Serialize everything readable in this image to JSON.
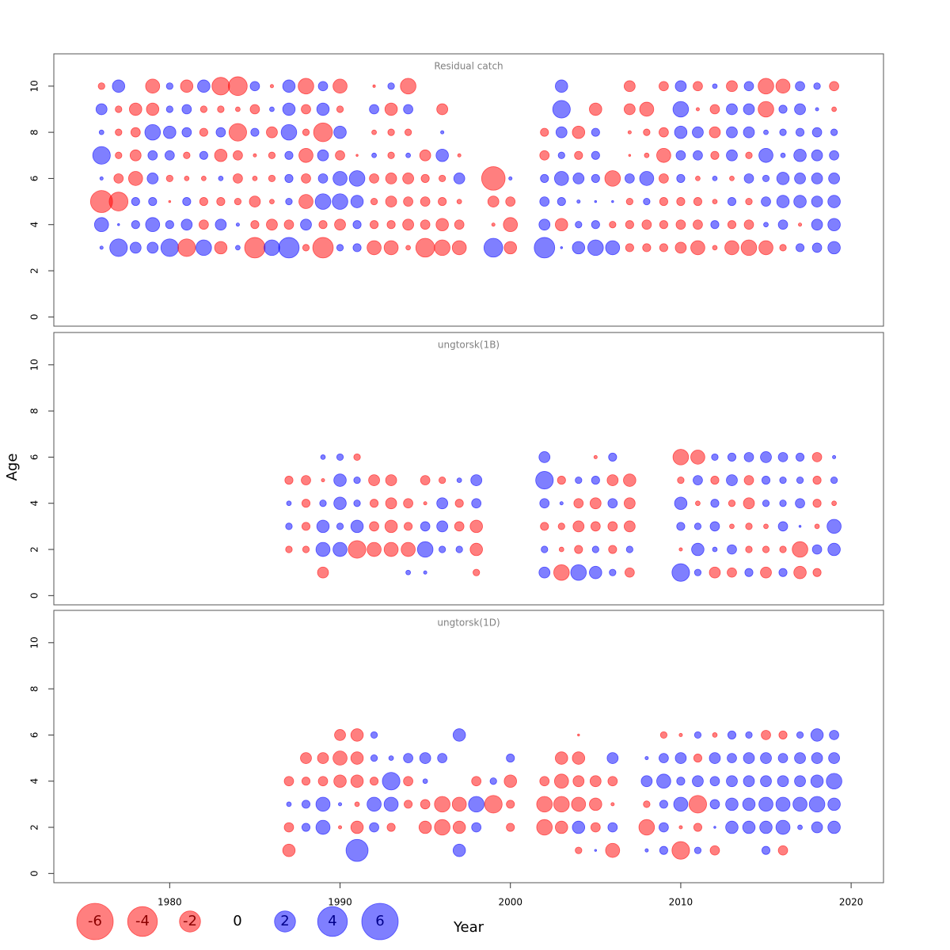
{
  "chart_data": [
    {
      "type": "bubble",
      "title": "Residual catch",
      "x": [
        1976,
        1977,
        1978,
        1979,
        1980,
        1981,
        1982,
        1983,
        1984,
        1985,
        1986,
        1987,
        1988,
        1989,
        1990,
        1991,
        1992,
        1993,
        1994,
        1995,
        1996,
        1997,
        1998,
        1999,
        2000,
        2001,
        2002,
        2003,
        2004,
        2005,
        2006,
        2007,
        2008,
        2009,
        2010,
        2011,
        2012,
        2013,
        2014,
        2015,
        2016,
        2017,
        2018,
        2019
      ],
      "ages": [
        10,
        9,
        8,
        7,
        6,
        5,
        4,
        3
      ],
      "values": [
        [
          -0.2,
          0.7,
          null,
          -0.9,
          0.2,
          -0.7,
          0.7,
          -1.4,
          -1.6,
          0.4,
          -0.05,
          0.7,
          -1.1,
          0.4,
          -0.9,
          null,
          -0.03,
          0.2,
          -1.1,
          null,
          null,
          null,
          null,
          null,
          null,
          null,
          null,
          0.7,
          null,
          null,
          null,
          -0.55,
          null,
          -0.4,
          0.55,
          -0.4,
          0.1,
          -0.55,
          0.4,
          -1.1,
          -0.9,
          0.4,
          0.2,
          -0.4
        ],
        [
          0.55,
          -0.2,
          -0.7,
          -0.7,
          0.2,
          0.4,
          -0.2,
          -0.2,
          -0.1,
          -0.4,
          0.1,
          0.7,
          -0.4,
          0.7,
          -0.2,
          null,
          0.4,
          -0.7,
          0.4,
          null,
          -0.55,
          null,
          null,
          null,
          null,
          null,
          null,
          1.4,
          null,
          -0.7,
          null,
          -0.55,
          -0.9,
          null,
          1.1,
          -0.05,
          -0.4,
          0.55,
          0.55,
          -1.1,
          0.3,
          0.55,
          0.05,
          -0.1
        ],
        [
          0.1,
          -0.2,
          -0.4,
          1.1,
          0.7,
          0.4,
          -0.3,
          0.4,
          -1.4,
          0.3,
          -0.55,
          1.1,
          -0.2,
          -1.6,
          0.7,
          null,
          -0.1,
          -0.2,
          -0.2,
          null,
          0.05,
          null,
          null,
          null,
          null,
          null,
          -0.3,
          0.55,
          -0.7,
          0.3,
          null,
          -0.05,
          -0.2,
          -0.4,
          0.7,
          0.55,
          -0.55,
          0.55,
          0.55,
          0.1,
          0.2,
          0.3,
          0.4,
          0.2
        ],
        [
          1.4,
          -0.2,
          -0.55,
          0.4,
          0.4,
          -0.2,
          0.3,
          -0.7,
          -0.4,
          -0.05,
          -0.2,
          0.3,
          -0.9,
          0.55,
          -0.4,
          -0.02,
          0.1,
          -0.2,
          0.1,
          -0.55,
          0.7,
          -0.05,
          null,
          null,
          null,
          null,
          -0.4,
          0.2,
          -0.3,
          0.3,
          null,
          -0.02,
          -0.1,
          -0.9,
          0.4,
          0.4,
          -0.3,
          0.55,
          -0.2,
          0.9,
          0.1,
          0.7,
          0.55,
          0.4
        ],
        [
          0.05,
          -0.4,
          -0.9,
          0.55,
          -0.2,
          -0.1,
          -0.1,
          0.1,
          -0.4,
          -0.1,
          -0.2,
          0.3,
          -0.4,
          0.4,
          0.9,
          1.1,
          -0.4,
          -0.55,
          -0.55,
          -0.3,
          -0.2,
          0.55,
          null,
          -2.5,
          0.05,
          null,
          0.3,
          0.9,
          0.55,
          0.3,
          -1.1,
          0.4,
          0.9,
          -0.4,
          0.3,
          -0.1,
          0.1,
          -0.1,
          0.4,
          0.2,
          0.7,
          0.55,
          0.55,
          0.55
        ],
        [
          -2.2,
          -1.6,
          0.3,
          0.3,
          -0.02,
          0.3,
          -0.3,
          -0.3,
          -0.2,
          -0.55,
          -0.1,
          0.2,
          -0.9,
          1.1,
          1.1,
          0.7,
          -0.2,
          -0.55,
          -0.4,
          -0.4,
          -0.3,
          -0.1,
          null,
          -0.55,
          -0.4,
          null,
          0.4,
          0.3,
          0.05,
          0.02,
          0.02,
          -0.2,
          0.2,
          -0.3,
          -0.3,
          -0.3,
          -0.1,
          0.3,
          -0.2,
          0.4,
          0.7,
          0.7,
          0.55,
          0.7
        ],
        [
          0.9,
          0.02,
          0.3,
          0.9,
          0.3,
          0.55,
          -0.4,
          0.55,
          0.05,
          -0.3,
          -0.55,
          -0.4,
          0.55,
          -0.3,
          -0.55,
          0.3,
          -0.3,
          -0.3,
          -0.55,
          -0.4,
          -0.7,
          -0.4,
          null,
          -0.05,
          -0.9,
          null,
          0.55,
          -0.7,
          0.2,
          0.3,
          -0.2,
          -0.3,
          -0.4,
          -0.3,
          -0.4,
          -0.4,
          0.3,
          -0.3,
          -0.4,
          0.1,
          0.4,
          -0.05,
          0.55,
          0.7
        ],
        [
          0.05,
          1.4,
          0.55,
          0.55,
          1.4,
          -1.4,
          1.1,
          -0.7,
          0.1,
          -1.9,
          1.1,
          1.9,
          -0.2,
          -1.9,
          0.2,
          0.3,
          -0.9,
          -0.9,
          -0.1,
          -1.6,
          -1.1,
          -0.9,
          null,
          1.6,
          -0.7,
          null,
          1.9,
          0.02,
          0.7,
          1.1,
          0.9,
          -0.3,
          -0.3,
          -0.3,
          -0.55,
          -0.9,
          -0.1,
          -0.9,
          -1.1,
          -0.9,
          -0.2,
          0.3,
          0.4,
          0.7
        ]
      ],
      "xlim": [
        1973.2,
        2021.9
      ],
      "ylim": [
        -0.4,
        11.4
      ],
      "yticks": [
        0,
        2,
        4,
        6,
        8,
        10
      ]
    },
    {
      "type": "bubble",
      "title": "ungtorsk(1B)",
      "x": [
        1987,
        1988,
        1989,
        1990,
        1991,
        1992,
        1993,
        1994,
        1995,
        1996,
        1997,
        1998,
        1999,
        2000,
        2001,
        2002,
        2003,
        2004,
        2005,
        2006,
        2007,
        2008,
        2009,
        2010,
        2011,
        2012,
        2013,
        2014,
        2015,
        2016,
        2017,
        2018,
        2019
      ],
      "ages": [
        6,
        5,
        4,
        3,
        2,
        1
      ],
      "values": [
        [
          null,
          null,
          0.1,
          0.2,
          -0.2,
          null,
          null,
          null,
          null,
          null,
          null,
          null,
          null,
          null,
          null,
          0.55,
          null,
          null,
          -0.05,
          0.3,
          null,
          null,
          null,
          -1.1,
          -0.9,
          0.2,
          0.3,
          0.4,
          0.55,
          0.4,
          0.3,
          -0.4,
          0.05
        ],
        [
          -0.3,
          -0.4,
          -0.05,
          0.7,
          0.2,
          -0.55,
          -0.55,
          null,
          -0.4,
          -0.2,
          0.1,
          0.55,
          null,
          null,
          null,
          1.4,
          -0.3,
          0.2,
          0.3,
          -0.55,
          -0.7,
          null,
          null,
          -0.2,
          0.4,
          -0.3,
          0.55,
          -0.4,
          0.3,
          0.2,
          0.2,
          -0.3,
          0.2
        ],
        [
          0.1,
          -0.3,
          0.2,
          0.7,
          0.2,
          -0.3,
          -0.55,
          -0.4,
          -0.05,
          0.55,
          -0.3,
          0.4,
          null,
          null,
          null,
          0.4,
          0.05,
          -0.4,
          -0.55,
          0.4,
          -0.55,
          null,
          null,
          0.7,
          -0.1,
          0.3,
          -0.2,
          -0.55,
          0.2,
          0.2,
          0.4,
          -0.3,
          -0.1
        ],
        [
          0.2,
          -0.3,
          0.7,
          0.2,
          0.7,
          -0.4,
          -0.7,
          -0.3,
          0.4,
          0.55,
          -0.4,
          -0.7,
          null,
          null,
          null,
          -0.3,
          -0.2,
          -0.55,
          -0.4,
          -0.4,
          -0.55,
          null,
          null,
          0.3,
          0.2,
          0.4,
          -0.1,
          -0.2,
          -0.1,
          0.4,
          0.02,
          -0.1,
          0.9
        ],
        [
          -0.2,
          -0.2,
          0.9,
          0.9,
          -1.4,
          -0.9,
          -0.9,
          -0.9,
          1.1,
          0.2,
          0.2,
          -0.7,
          null,
          null,
          null,
          0.2,
          -0.1,
          -0.3,
          0.2,
          -0.3,
          0.2,
          null,
          null,
          -0.05,
          0.7,
          0.1,
          0.4,
          -0.2,
          -0.2,
          -0.2,
          -1.1,
          0.4,
          0.7
        ],
        [
          null,
          null,
          -0.55,
          null,
          null,
          null,
          null,
          0.1,
          0.05,
          null,
          null,
          -0.2,
          null,
          null,
          null,
          0.55,
          -1.1,
          1.1,
          0.7,
          0.2,
          -0.4,
          null,
          null,
          1.4,
          0.2,
          -0.55,
          -0.4,
          0.3,
          -0.55,
          0.3,
          -0.7,
          -0.3,
          null
        ]
      ],
      "xlim": [
        1973.2,
        2021.9
      ],
      "ylim": [
        -0.4,
        11.4
      ],
      "yticks": [
        0,
        2,
        4,
        6,
        8,
        10
      ]
    },
    {
      "type": "bubble",
      "title": "ungtorsk(1D)",
      "x": [
        1987,
        1988,
        1989,
        1990,
        1991,
        1992,
        1993,
        1994,
        1995,
        1996,
        1997,
        1998,
        1999,
        2000,
        2001,
        2002,
        2003,
        2004,
        2005,
        2006,
        2007,
        2008,
        2009,
        2010,
        2011,
        2012,
        2013,
        2014,
        2015,
        2016,
        2017,
        2018,
        2019
      ],
      "ages": [
        6,
        5,
        4,
        3,
        2,
        1
      ],
      "values": [
        [
          null,
          null,
          null,
          -0.55,
          -0.7,
          0.2,
          null,
          null,
          null,
          null,
          0.7,
          null,
          null,
          null,
          null,
          null,
          null,
          -0.02,
          null,
          null,
          null,
          null,
          -0.2,
          -0.05,
          0.2,
          -0.1,
          0.3,
          0.2,
          -0.4,
          -0.3,
          0.2,
          0.7,
          0.4
        ],
        [
          null,
          -0.55,
          -0.55,
          -0.9,
          -0.7,
          0.2,
          0.1,
          0.4,
          0.55,
          0.4,
          null,
          null,
          null,
          0.3,
          null,
          null,
          -0.7,
          -0.7,
          null,
          0.55,
          null,
          0.05,
          0.4,
          0.55,
          -0.3,
          0.55,
          0.4,
          0.55,
          0.55,
          0.4,
          0.55,
          0.55,
          0.55
        ],
        [
          -0.4,
          -0.3,
          -0.4,
          -0.7,
          -0.7,
          -0.3,
          1.4,
          -0.4,
          0.1,
          null,
          null,
          -0.4,
          0.2,
          -0.7,
          null,
          -0.4,
          -0.9,
          -0.55,
          -0.55,
          -0.4,
          null,
          0.55,
          0.9,
          0.3,
          0.55,
          0.4,
          0.55,
          0.55,
          0.55,
          0.55,
          0.55,
          0.7,
          1.1
        ],
        [
          0.1,
          0.3,
          0.9,
          0.05,
          -0.1,
          0.9,
          0.9,
          -0.3,
          -0.4,
          -1.1,
          -0.9,
          1.1,
          -1.4,
          -0.3,
          null,
          -1.1,
          -1.1,
          -0.9,
          -0.7,
          -0.05,
          null,
          -0.2,
          0.3,
          0.9,
          -1.4,
          0.4,
          0.7,
          0.7,
          0.9,
          0.9,
          0.9,
          1.1,
          0.7
        ],
        [
          -0.4,
          0.3,
          0.9,
          -0.05,
          -0.7,
          0.4,
          -0.3,
          null,
          -0.7,
          -1.1,
          -0.7,
          0.4,
          null,
          -0.3,
          null,
          -1.1,
          -0.7,
          0.7,
          -0.4,
          0.4,
          null,
          -1.1,
          0.4,
          -0.05,
          -0.3,
          0.02,
          0.7,
          0.7,
          0.7,
          0.9,
          0.1,
          0.55,
          0.7
        ],
        [
          -0.7,
          null,
          null,
          null,
          2.2,
          null,
          null,
          null,
          null,
          null,
          0.7,
          null,
          null,
          null,
          null,
          null,
          null,
          -0.2,
          0.02,
          -0.9,
          null,
          0.05,
          0.3,
          -1.4,
          0.2,
          -0.4,
          null,
          null,
          0.3,
          -0.4,
          null,
          null,
          null
        ]
      ],
      "xlim": [
        1973.2,
        2021.9
      ],
      "ylim": [
        -0.4,
        11.4
      ],
      "yticks": [
        0,
        2,
        4,
        6,
        8,
        10
      ],
      "xticks": [
        1980,
        1990,
        2000,
        2010,
        2020
      ]
    }
  ],
  "x_label": "Year",
  "y_label": "Age",
  "colors": {
    "positive": "#0000ff",
    "negative": "#ff0000",
    "positive_text": "#00008b",
    "negative_text": "#8b0000"
  },
  "size_legend": [
    -6,
    -4,
    -2,
    0,
    2,
    4,
    6
  ]
}
